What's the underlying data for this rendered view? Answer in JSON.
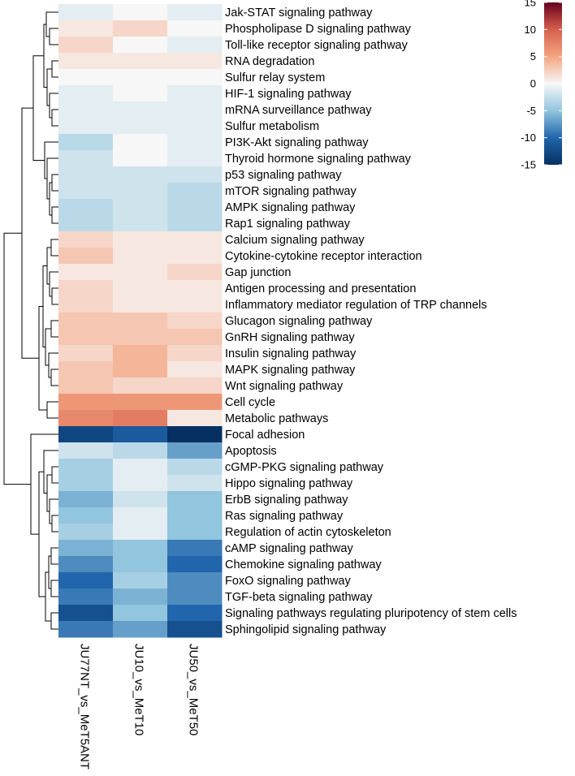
{
  "chart_data": {
    "type": "heatmap",
    "title": "",
    "columns": [
      "JU77NT_vs_MeT5ANT",
      "JU10_vs_MeT10",
      "JU50_vs_MeT50"
    ],
    "rows": [
      "Jak-STAT signaling pathway",
      "Phospholipase D signaling pathway",
      "Toll-like receptor signaling pathway",
      "RNA degradation",
      "Sulfur relay system",
      "HIF-1 signaling pathway",
      "mRNA surveillance pathway",
      "Sulfur metabolism",
      "PI3K-Akt signaling pathway",
      "Thyroid hormone signaling pathway",
      "p53 signaling pathway",
      "mTOR signaling pathway",
      "AMPK signaling pathway",
      "Rap1 signaling pathway",
      "Calcium signaling pathway",
      "Cytokine-cytokine receptor interaction",
      "Gap junction",
      "Antigen processing and presentation",
      "Inflammatory mediator regulation of TRP channels",
      "Glucagon signaling pathway",
      "GnRH signaling pathway",
      "Insulin signaling pathway",
      "MAPK signaling pathway",
      "Wnt signaling pathway",
      "Cell cycle",
      "Metabolic pathways",
      "Focal adhesion",
      "Apoptosis",
      "cGMP-PKG signaling pathway",
      "Hippo signaling pathway",
      "ErbB signaling pathway",
      "Ras signaling pathway",
      "Regulation of actin cytoskeleton",
      "cAMP signaling pathway",
      "Chemokine signaling pathway",
      "FoxO signaling pathway",
      "TGF-beta signaling pathway",
      "Signaling pathways regulating pluripotency of stem cells",
      "Sphingolipid signaling pathway"
    ],
    "values": [
      [
        -1,
        0,
        -1
      ],
      [
        1,
        2,
        0
      ],
      [
        2,
        0,
        -1
      ],
      [
        1,
        1,
        1
      ],
      [
        0,
        0,
        0
      ],
      [
        -1,
        0,
        -1
      ],
      [
        -1,
        -1,
        -1
      ],
      [
        -1,
        -1,
        -1
      ],
      [
        -3,
        0,
        -1
      ],
      [
        -2,
        0,
        -1
      ],
      [
        -2,
        -2,
        -2
      ],
      [
        -2,
        -2,
        -3
      ],
      [
        -3,
        -2,
        -3
      ],
      [
        -3,
        -2,
        -3
      ],
      [
        2,
        1,
        1
      ],
      [
        3,
        1,
        1
      ],
      [
        1,
        1,
        2
      ],
      [
        2,
        1,
        1
      ],
      [
        2,
        1,
        1
      ],
      [
        3,
        3,
        2
      ],
      [
        3,
        3,
        3
      ],
      [
        2,
        4,
        2
      ],
      [
        3,
        4,
        1
      ],
      [
        3,
        2,
        2
      ],
      [
        6,
        6,
        6
      ],
      [
        7,
        8,
        1
      ],
      [
        -13,
        -11,
        -15
      ],
      [
        -2,
        -3,
        -7
      ],
      [
        -4,
        -1,
        -3
      ],
      [
        -4,
        -1,
        -2
      ],
      [
        -6,
        -2,
        -5
      ],
      [
        -5,
        -1,
        -5
      ],
      [
        -4,
        -1,
        -5
      ],
      [
        -6,
        -5,
        -9
      ],
      [
        -8,
        -5,
        -10
      ],
      [
        -10,
        -4,
        -8
      ],
      [
        -9,
        -6,
        -8
      ],
      [
        -12,
        -5,
        -10
      ],
      [
        -9,
        -7,
        -12
      ]
    ],
    "colorbar": {
      "min": -15,
      "max": 15,
      "ticks": [
        15,
        10,
        5,
        0,
        -5,
        -10,
        -15
      ],
      "colors": {
        "-15": "#053061",
        "-10": "#2166ac",
        "-5": "#92c5de",
        "0": "#f7f7f7",
        "5": "#f4a582",
        "10": "#d6604d",
        "15": "#67001f"
      }
    },
    "dendrogram": {
      "rows": true,
      "columns": false
    },
    "grid": false,
    "legend_position": "top-right"
  }
}
